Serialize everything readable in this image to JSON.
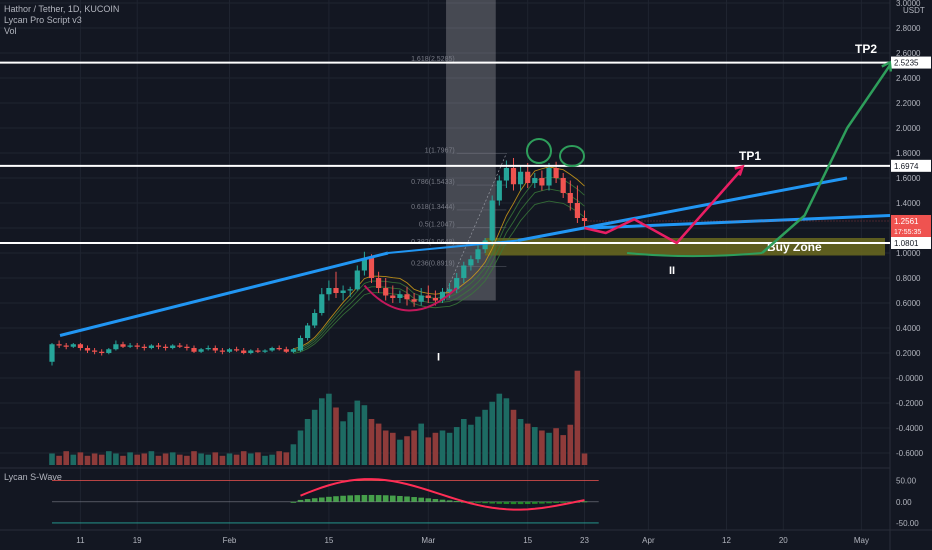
{
  "header": {
    "title": "Hathor / Tether, 1D, KUCOIN",
    "indicator1": "Lycan Pro Script v3",
    "indicator2": "Vol"
  },
  "oscillator": {
    "label": "Lycan S-Wave"
  },
  "currency": "USDT",
  "colors": {
    "background": "#131722",
    "up": "#26a69a",
    "down": "#ef5350",
    "trendline": "#2196f3",
    "pink": "#e91e63",
    "green_path": "#2e9e5b",
    "buyzone": "#6b6a1f",
    "white": "#ffffff"
  },
  "chart_data": {
    "type": "candlestick",
    "price_axis": {
      "ticks": [
        "3.0000",
        "2.8000",
        "2.6000",
        "2.4000",
        "2.2000",
        "2.0000",
        "1.8000",
        "1.6000",
        "1.4000",
        "1.2000",
        "1.0000",
        "0.8000",
        "0.6000",
        "0.4000",
        "0.2000",
        "-0.0000",
        "-0.2000",
        "-0.4000",
        "-0.6000"
      ],
      "range": [
        -0.68,
        3.02
      ]
    },
    "time_axis": {
      "ticks": [
        {
          "label": "11",
          "day": 4
        },
        {
          "label": "19",
          "day": 12
        },
        {
          "label": "Feb",
          "day": 25
        },
        {
          "label": "15",
          "day": 39
        },
        {
          "label": "Mar",
          "day": 53
        },
        {
          "label": "15",
          "day": 67
        },
        {
          "label": "23",
          "day": 75
        },
        {
          "label": "Apr",
          "day": 84
        },
        {
          "label": "12",
          "day": 95
        },
        {
          "label": "20",
          "day": 103
        },
        {
          "label": "May",
          "day": 114
        }
      ]
    },
    "candles": [
      {
        "d": 0,
        "o": 0.13,
        "h": 0.28,
        "c": 0.27,
        "l": 0.1
      },
      {
        "d": 1,
        "o": 0.27,
        "h": 0.3,
        "c": 0.26,
        "l": 0.24
      },
      {
        "d": 2,
        "o": 0.26,
        "h": 0.28,
        "c": 0.25,
        "l": 0.23
      },
      {
        "d": 3,
        "o": 0.25,
        "h": 0.28,
        "c": 0.27,
        "l": 0.24
      },
      {
        "d": 4,
        "o": 0.27,
        "h": 0.28,
        "c": 0.24,
        "l": 0.22
      },
      {
        "d": 5,
        "o": 0.24,
        "h": 0.26,
        "c": 0.22,
        "l": 0.2
      },
      {
        "d": 6,
        "o": 0.22,
        "h": 0.24,
        "c": 0.21,
        "l": 0.19
      },
      {
        "d": 7,
        "o": 0.21,
        "h": 0.23,
        "c": 0.2,
        "l": 0.18
      },
      {
        "d": 8,
        "o": 0.2,
        "h": 0.24,
        "c": 0.23,
        "l": 0.19
      },
      {
        "d": 9,
        "o": 0.23,
        "h": 0.3,
        "c": 0.27,
        "l": 0.22
      },
      {
        "d": 10,
        "o": 0.27,
        "h": 0.29,
        "c": 0.25,
        "l": 0.24
      },
      {
        "d": 11,
        "o": 0.25,
        "h": 0.28,
        "c": 0.26,
        "l": 0.24
      },
      {
        "d": 12,
        "o": 0.26,
        "h": 0.28,
        "c": 0.25,
        "l": 0.23
      },
      {
        "d": 13,
        "o": 0.25,
        "h": 0.27,
        "c": 0.24,
        "l": 0.22
      },
      {
        "d": 14,
        "o": 0.24,
        "h": 0.27,
        "c": 0.26,
        "l": 0.23
      },
      {
        "d": 15,
        "o": 0.26,
        "h": 0.28,
        "c": 0.25,
        "l": 0.23
      },
      {
        "d": 16,
        "o": 0.25,
        "h": 0.27,
        "c": 0.24,
        "l": 0.22
      },
      {
        "d": 17,
        "o": 0.24,
        "h": 0.27,
        "c": 0.26,
        "l": 0.23
      },
      {
        "d": 18,
        "o": 0.26,
        "h": 0.28,
        "c": 0.25,
        "l": 0.24
      },
      {
        "d": 19,
        "o": 0.25,
        "h": 0.27,
        "c": 0.24,
        "l": 0.22
      },
      {
        "d": 20,
        "o": 0.24,
        "h": 0.26,
        "c": 0.21,
        "l": 0.2
      },
      {
        "d": 21,
        "o": 0.21,
        "h": 0.24,
        "c": 0.23,
        "l": 0.2
      },
      {
        "d": 22,
        "o": 0.23,
        "h": 0.26,
        "c": 0.24,
        "l": 0.22
      },
      {
        "d": 23,
        "o": 0.24,
        "h": 0.26,
        "c": 0.22,
        "l": 0.2
      },
      {
        "d": 24,
        "o": 0.22,
        "h": 0.24,
        "c": 0.21,
        "l": 0.19
      },
      {
        "d": 25,
        "o": 0.21,
        "h": 0.24,
        "c": 0.23,
        "l": 0.2
      },
      {
        "d": 26,
        "o": 0.23,
        "h": 0.25,
        "c": 0.22,
        "l": 0.21
      },
      {
        "d": 27,
        "o": 0.22,
        "h": 0.24,
        "c": 0.2,
        "l": 0.19
      },
      {
        "d": 28,
        "o": 0.2,
        "h": 0.23,
        "c": 0.22,
        "l": 0.19
      },
      {
        "d": 29,
        "o": 0.22,
        "h": 0.24,
        "c": 0.21,
        "l": 0.2
      },
      {
        "d": 30,
        "o": 0.21,
        "h": 0.23,
        "c": 0.22,
        "l": 0.2
      },
      {
        "d": 31,
        "o": 0.22,
        "h": 0.25,
        "c": 0.24,
        "l": 0.21
      },
      {
        "d": 32,
        "o": 0.24,
        "h": 0.26,
        "c": 0.23,
        "l": 0.22
      },
      {
        "d": 33,
        "o": 0.23,
        "h": 0.25,
        "c": 0.21,
        "l": 0.2
      },
      {
        "d": 34,
        "o": 0.21,
        "h": 0.24,
        "c": 0.23,
        "l": 0.2
      },
      {
        "d": 35,
        "o": 0.22,
        "h": 0.34,
        "c": 0.32,
        "l": 0.21
      },
      {
        "d": 36,
        "o": 0.32,
        "h": 0.44,
        "c": 0.42,
        "l": 0.3
      },
      {
        "d": 37,
        "o": 0.42,
        "h": 0.55,
        "c": 0.52,
        "l": 0.4
      },
      {
        "d": 38,
        "o": 0.52,
        "h": 0.72,
        "c": 0.67,
        "l": 0.5
      },
      {
        "d": 39,
        "o": 0.67,
        "h": 0.78,
        "c": 0.72,
        "l": 0.62
      },
      {
        "d": 40,
        "o": 0.72,
        "h": 0.85,
        "c": 0.68,
        "l": 0.64
      },
      {
        "d": 41,
        "o": 0.68,
        "h": 0.74,
        "c": 0.7,
        "l": 0.62
      },
      {
        "d": 42,
        "o": 0.7,
        "h": 0.73,
        "c": 0.71,
        "l": 0.65
      },
      {
        "d": 43,
        "o": 0.71,
        "h": 0.9,
        "c": 0.86,
        "l": 0.7
      },
      {
        "d": 44,
        "o": 0.86,
        "h": 1.01,
        "c": 0.96,
        "l": 0.82
      },
      {
        "d": 45,
        "o": 0.96,
        "h": 0.99,
        "c": 0.8,
        "l": 0.76
      },
      {
        "d": 46,
        "o": 0.8,
        "h": 0.85,
        "c": 0.72,
        "l": 0.68
      },
      {
        "d": 47,
        "o": 0.72,
        "h": 0.8,
        "c": 0.66,
        "l": 0.62
      },
      {
        "d": 48,
        "o": 0.66,
        "h": 0.74,
        "c": 0.64,
        "l": 0.6
      },
      {
        "d": 49,
        "o": 0.64,
        "h": 0.7,
        "c": 0.67,
        "l": 0.6
      },
      {
        "d": 50,
        "o": 0.67,
        "h": 0.73,
        "c": 0.63,
        "l": 0.58
      },
      {
        "d": 51,
        "o": 0.63,
        "h": 0.68,
        "c": 0.61,
        "l": 0.57
      },
      {
        "d": 52,
        "o": 0.61,
        "h": 0.72,
        "c": 0.66,
        "l": 0.58
      },
      {
        "d": 53,
        "o": 0.66,
        "h": 0.74,
        "c": 0.64,
        "l": 0.6
      },
      {
        "d": 54,
        "o": 0.64,
        "h": 0.7,
        "c": 0.62,
        "l": 0.58
      },
      {
        "d": 55,
        "o": 0.62,
        "h": 0.72,
        "c": 0.69,
        "l": 0.6
      },
      {
        "d": 56,
        "o": 0.69,
        "h": 0.76,
        "c": 0.71,
        "l": 0.64
      },
      {
        "d": 57,
        "o": 0.71,
        "h": 0.84,
        "c": 0.8,
        "l": 0.68
      },
      {
        "d": 58,
        "o": 0.8,
        "h": 0.93,
        "c": 0.9,
        "l": 0.76
      },
      {
        "d": 59,
        "o": 0.9,
        "h": 0.98,
        "c": 0.95,
        "l": 0.86
      },
      {
        "d": 60,
        "o": 0.95,
        "h": 1.06,
        "c": 1.03,
        "l": 0.92
      },
      {
        "d": 61,
        "o": 1.03,
        "h": 1.12,
        "c": 1.1,
        "l": 1.0
      },
      {
        "d": 62,
        "o": 1.1,
        "h": 1.46,
        "c": 1.42,
        "l": 1.06
      },
      {
        "d": 63,
        "o": 1.42,
        "h": 1.62,
        "c": 1.58,
        "l": 1.38
      },
      {
        "d": 64,
        "o": 1.58,
        "h": 1.74,
        "c": 1.68,
        "l": 1.52
      },
      {
        "d": 65,
        "o": 1.68,
        "h": 1.76,
        "c": 1.55,
        "l": 1.5
      },
      {
        "d": 66,
        "o": 1.55,
        "h": 1.7,
        "c": 1.65,
        "l": 1.5
      },
      {
        "d": 67,
        "o": 1.65,
        "h": 1.72,
        "c": 1.56,
        "l": 1.52
      },
      {
        "d": 68,
        "o": 1.56,
        "h": 1.64,
        "c": 1.6,
        "l": 1.52
      },
      {
        "d": 69,
        "o": 1.6,
        "h": 1.66,
        "c": 1.54,
        "l": 1.5
      },
      {
        "d": 70,
        "o": 1.54,
        "h": 1.72,
        "c": 1.68,
        "l": 1.5
      },
      {
        "d": 71,
        "o": 1.68,
        "h": 1.73,
        "c": 1.6,
        "l": 1.56
      },
      {
        "d": 72,
        "o": 1.6,
        "h": 1.64,
        "c": 1.48,
        "l": 1.44
      },
      {
        "d": 73,
        "o": 1.48,
        "h": 1.58,
        "c": 1.4,
        "l": 1.34
      },
      {
        "d": 74,
        "o": 1.4,
        "h": 1.54,
        "c": 1.28,
        "l": 1.24
      },
      {
        "d": 75,
        "o": 1.28,
        "h": 1.34,
        "c": 1.256,
        "l": 1.2
      }
    ],
    "volume": [
      0.1,
      0.08,
      0.12,
      0.09,
      0.11,
      0.08,
      0.1,
      0.09,
      0.12,
      0.1,
      0.08,
      0.11,
      0.09,
      0.1,
      0.12,
      0.08,
      0.1,
      0.11,
      0.09,
      0.08,
      0.12,
      0.1,
      0.09,
      0.11,
      0.08,
      0.1,
      0.09,
      0.12,
      0.1,
      0.11,
      0.08,
      0.09,
      0.12,
      0.11,
      0.18,
      0.3,
      0.4,
      0.48,
      0.58,
      0.62,
      0.5,
      0.38,
      0.46,
      0.56,
      0.52,
      0.4,
      0.36,
      0.3,
      0.28,
      0.22,
      0.25,
      0.3,
      0.36,
      0.24,
      0.28,
      0.3,
      0.28,
      0.33,
      0.4,
      0.35,
      0.42,
      0.48,
      0.55,
      0.62,
      0.58,
      0.48,
      0.4,
      0.36,
      0.33,
      0.3,
      0.28,
      0.32,
      0.26,
      0.35,
      0.82,
      0.1
    ],
    "fib_levels": [
      {
        "label": "1.618(2.5285)",
        "value": 2.5285
      },
      {
        "label": "1(1.7967)",
        "value": 1.7967
      },
      {
        "label": "0.786(1.5433)",
        "value": 1.5433
      },
      {
        "label": "0.618(1.3444)",
        "value": 1.3444
      },
      {
        "label": "0.5(1.2047)",
        "value": 1.2047
      },
      {
        "label": "0.382(1.0648)",
        "value": 1.0648
      },
      {
        "label": "0.236(0.8919)",
        "value": 0.8919
      }
    ],
    "horizontal_lines": [
      {
        "label": "2.5235",
        "value": 2.5235
      },
      {
        "label": "1.6974",
        "value": 1.6974
      },
      {
        "label": "1.0801",
        "value": 1.0801
      }
    ],
    "last_price": {
      "label": "1.2561",
      "value": 1.2561,
      "timer": "17:55:35"
    },
    "buy_zone": {
      "label": "Buy Zone",
      "low": 0.98,
      "high": 1.12
    },
    "annotations": {
      "tp1": "TP1",
      "tp2": "TP2",
      "round1": "I",
      "round2": "II"
    },
    "oscillator_axis": {
      "ticks": [
        "50.00",
        "0.00",
        "-50.00"
      ],
      "range": [
        -62,
        68
      ]
    }
  }
}
